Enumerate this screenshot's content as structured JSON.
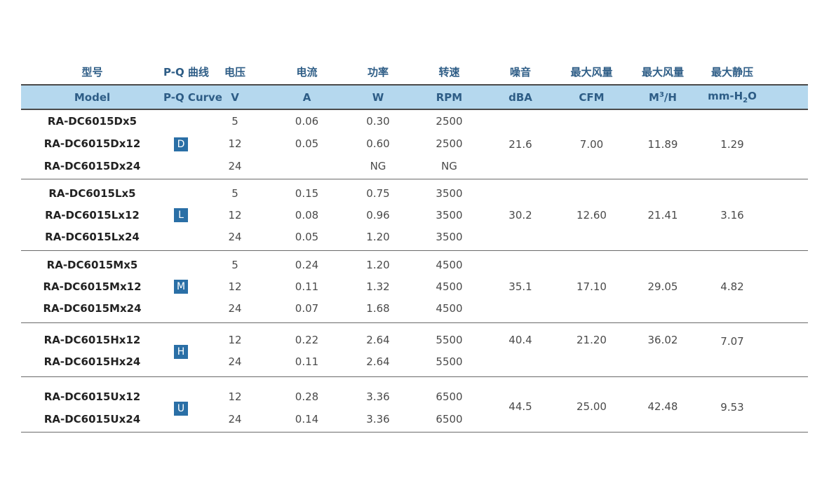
{
  "header_cn": [
    "型号",
    "P-Q 曲线",
    "电压",
    "电流",
    "功率",
    "转速",
    "噪音",
    "最大风量",
    "最大风量",
    "最大静压"
  ],
  "header_en": [
    "Model",
    "P-Q Curve",
    "V",
    "A",
    "W",
    "RPM",
    "dBA",
    "CFM",
    "M",
    "3",
    "/H",
    "mm-H",
    "2",
    "O"
  ],
  "groups": [
    {
      "curve": "D",
      "dba": "21.6",
      "cfm": "7.00",
      "m3h": "11.89",
      "pressure": "1.29",
      "rows": [
        {
          "model": "RA-DC6015Dx5",
          "v": "5",
          "a": "0.06",
          "w": "0.30",
          "rpm": "2500"
        },
        {
          "model": "RA-DC6015Dx12",
          "v": "12",
          "a": "0.05",
          "w": "0.60",
          "rpm": "2500"
        },
        {
          "model": "RA-DC6015Dx24",
          "v": "24",
          "a": "",
          "w": "NG",
          "rpm": "NG"
        }
      ]
    },
    {
      "curve": "L",
      "dba": "30.2",
      "cfm": "12.60",
      "m3h": "21.41",
      "pressure": "3.16",
      "rows": [
        {
          "model": "RA-DC6015Lx5",
          "v": "5",
          "a": "0.15",
          "w": "0.75",
          "rpm": "3500"
        },
        {
          "model": "RA-DC6015Lx12",
          "v": "12",
          "a": "0.08",
          "w": "0.96",
          "rpm": "3500"
        },
        {
          "model": "RA-DC6015Lx24",
          "v": "24",
          "a": "0.05",
          "w": "1.20",
          "rpm": "3500"
        }
      ]
    },
    {
      "curve": "M",
      "dba": "35.1",
      "cfm": "17.10",
      "m3h": "29.05",
      "pressure": "4.82",
      "rows": [
        {
          "model": "RA-DC6015Mx5",
          "v": "5",
          "a": "0.24",
          "w": "1.20",
          "rpm": "4500"
        },
        {
          "model": "RA-DC6015Mx12",
          "v": "12",
          "a": "0.11",
          "w": "1.32",
          "rpm": "4500"
        },
        {
          "model": "RA-DC6015Mx24",
          "v": "24",
          "a": "0.07",
          "w": "1.68",
          "rpm": "4500"
        }
      ]
    },
    {
      "curve": "H",
      "dba": "40.4",
      "cfm": "21.20",
      "m3h": "36.02",
      "pressure": "7.07",
      "rows": [
        {
          "model": "RA-DC6015Hx12",
          "v": "12",
          "a": "0.22",
          "w": "2.64",
          "rpm": "5500"
        },
        {
          "model": "RA-DC6015Hx24",
          "v": "24",
          "a": "0.11",
          "w": "2.64",
          "rpm": "5500"
        }
      ]
    },
    {
      "curve": "U",
      "dba": "44.5",
      "cfm": "25.00",
      "m3h": "42.48",
      "pressure": "9.53",
      "rows": [
        {
          "model": "RA-DC6015Ux12",
          "v": "12",
          "a": "0.28",
          "w": "3.36",
          "rpm": "6500"
        },
        {
          "model": "RA-DC6015Ux24",
          "v": "24",
          "a": "0.14",
          "w": "3.36",
          "rpm": "6500"
        }
      ]
    }
  ]
}
